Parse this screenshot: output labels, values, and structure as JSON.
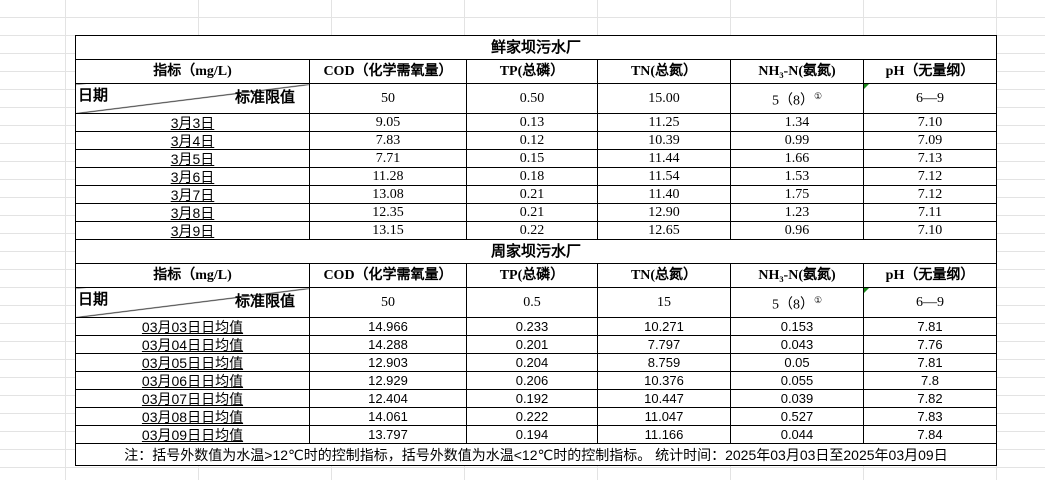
{
  "columns": [
    "指标（mg/L)",
    "COD（化学需氧量）",
    "TP(总磷）",
    "TN(总氮）",
    "NH₃-N(氨氮)",
    "pH（无量纲）"
  ],
  "diag_left": "日期",
  "diag_right": "标准限值",
  "footnote_mark": "①",
  "tables": [
    {
      "title": "鲜家坝污水厂",
      "standards": [
        "50",
        "0.50",
        "15.00",
        "5（8）",
        "6—9"
      ],
      "rows": [
        [
          "3月3日",
          "9.05",
          "0.13",
          "11.25",
          "1.34",
          "7.10"
        ],
        [
          "3月4日",
          "7.83",
          "0.12",
          "10.39",
          "0.99",
          "7.09"
        ],
        [
          "3月5日",
          "7.71",
          "0.15",
          "11.44",
          "1.66",
          "7.13"
        ],
        [
          "3月6日",
          "11.28",
          "0.18",
          "11.54",
          "1.53",
          "7.12"
        ],
        [
          "3月7日",
          "13.08",
          "0.21",
          "11.40",
          "1.75",
          "7.12"
        ],
        [
          "3月8日",
          "12.35",
          "0.21",
          "12.90",
          "1.23",
          "7.11"
        ],
        [
          "3月9日",
          "13.15",
          "0.22",
          "12.65",
          "0.96",
          "7.10"
        ]
      ]
    },
    {
      "title": "周家坝污水厂",
      "standards": [
        "50",
        "0.5",
        "15",
        "5（8）",
        "6—9"
      ],
      "rows": [
        [
          "03月03日日均值",
          "14.966",
          "0.233",
          "10.271",
          "0.153",
          "7.81"
        ],
        [
          "03月04日日均值",
          "14.288",
          "0.201",
          "7.797",
          "0.043",
          "7.76"
        ],
        [
          "03月05日日均值",
          "12.903",
          "0.204",
          "8.759",
          "0.05",
          "7.81"
        ],
        [
          "03月06日日均值",
          "12.929",
          "0.206",
          "10.376",
          "0.055",
          "7.8"
        ],
        [
          "03月07日日均值",
          "12.404",
          "0.192",
          "10.447",
          "0.039",
          "7.82"
        ],
        [
          "03月08日日均值",
          "14.061",
          "0.222",
          "11.047",
          "0.527",
          "7.83"
        ],
        [
          "03月09日日均值",
          "13.797",
          "0.194",
          "11.166",
          "0.044",
          "7.84"
        ]
      ]
    }
  ],
  "note": "注：括号外数值为水温>12℃时的控制指标，括号外数值为水温<12℃时的控制指标。  统计时间：2025年03月03日至2025年03月09日"
}
